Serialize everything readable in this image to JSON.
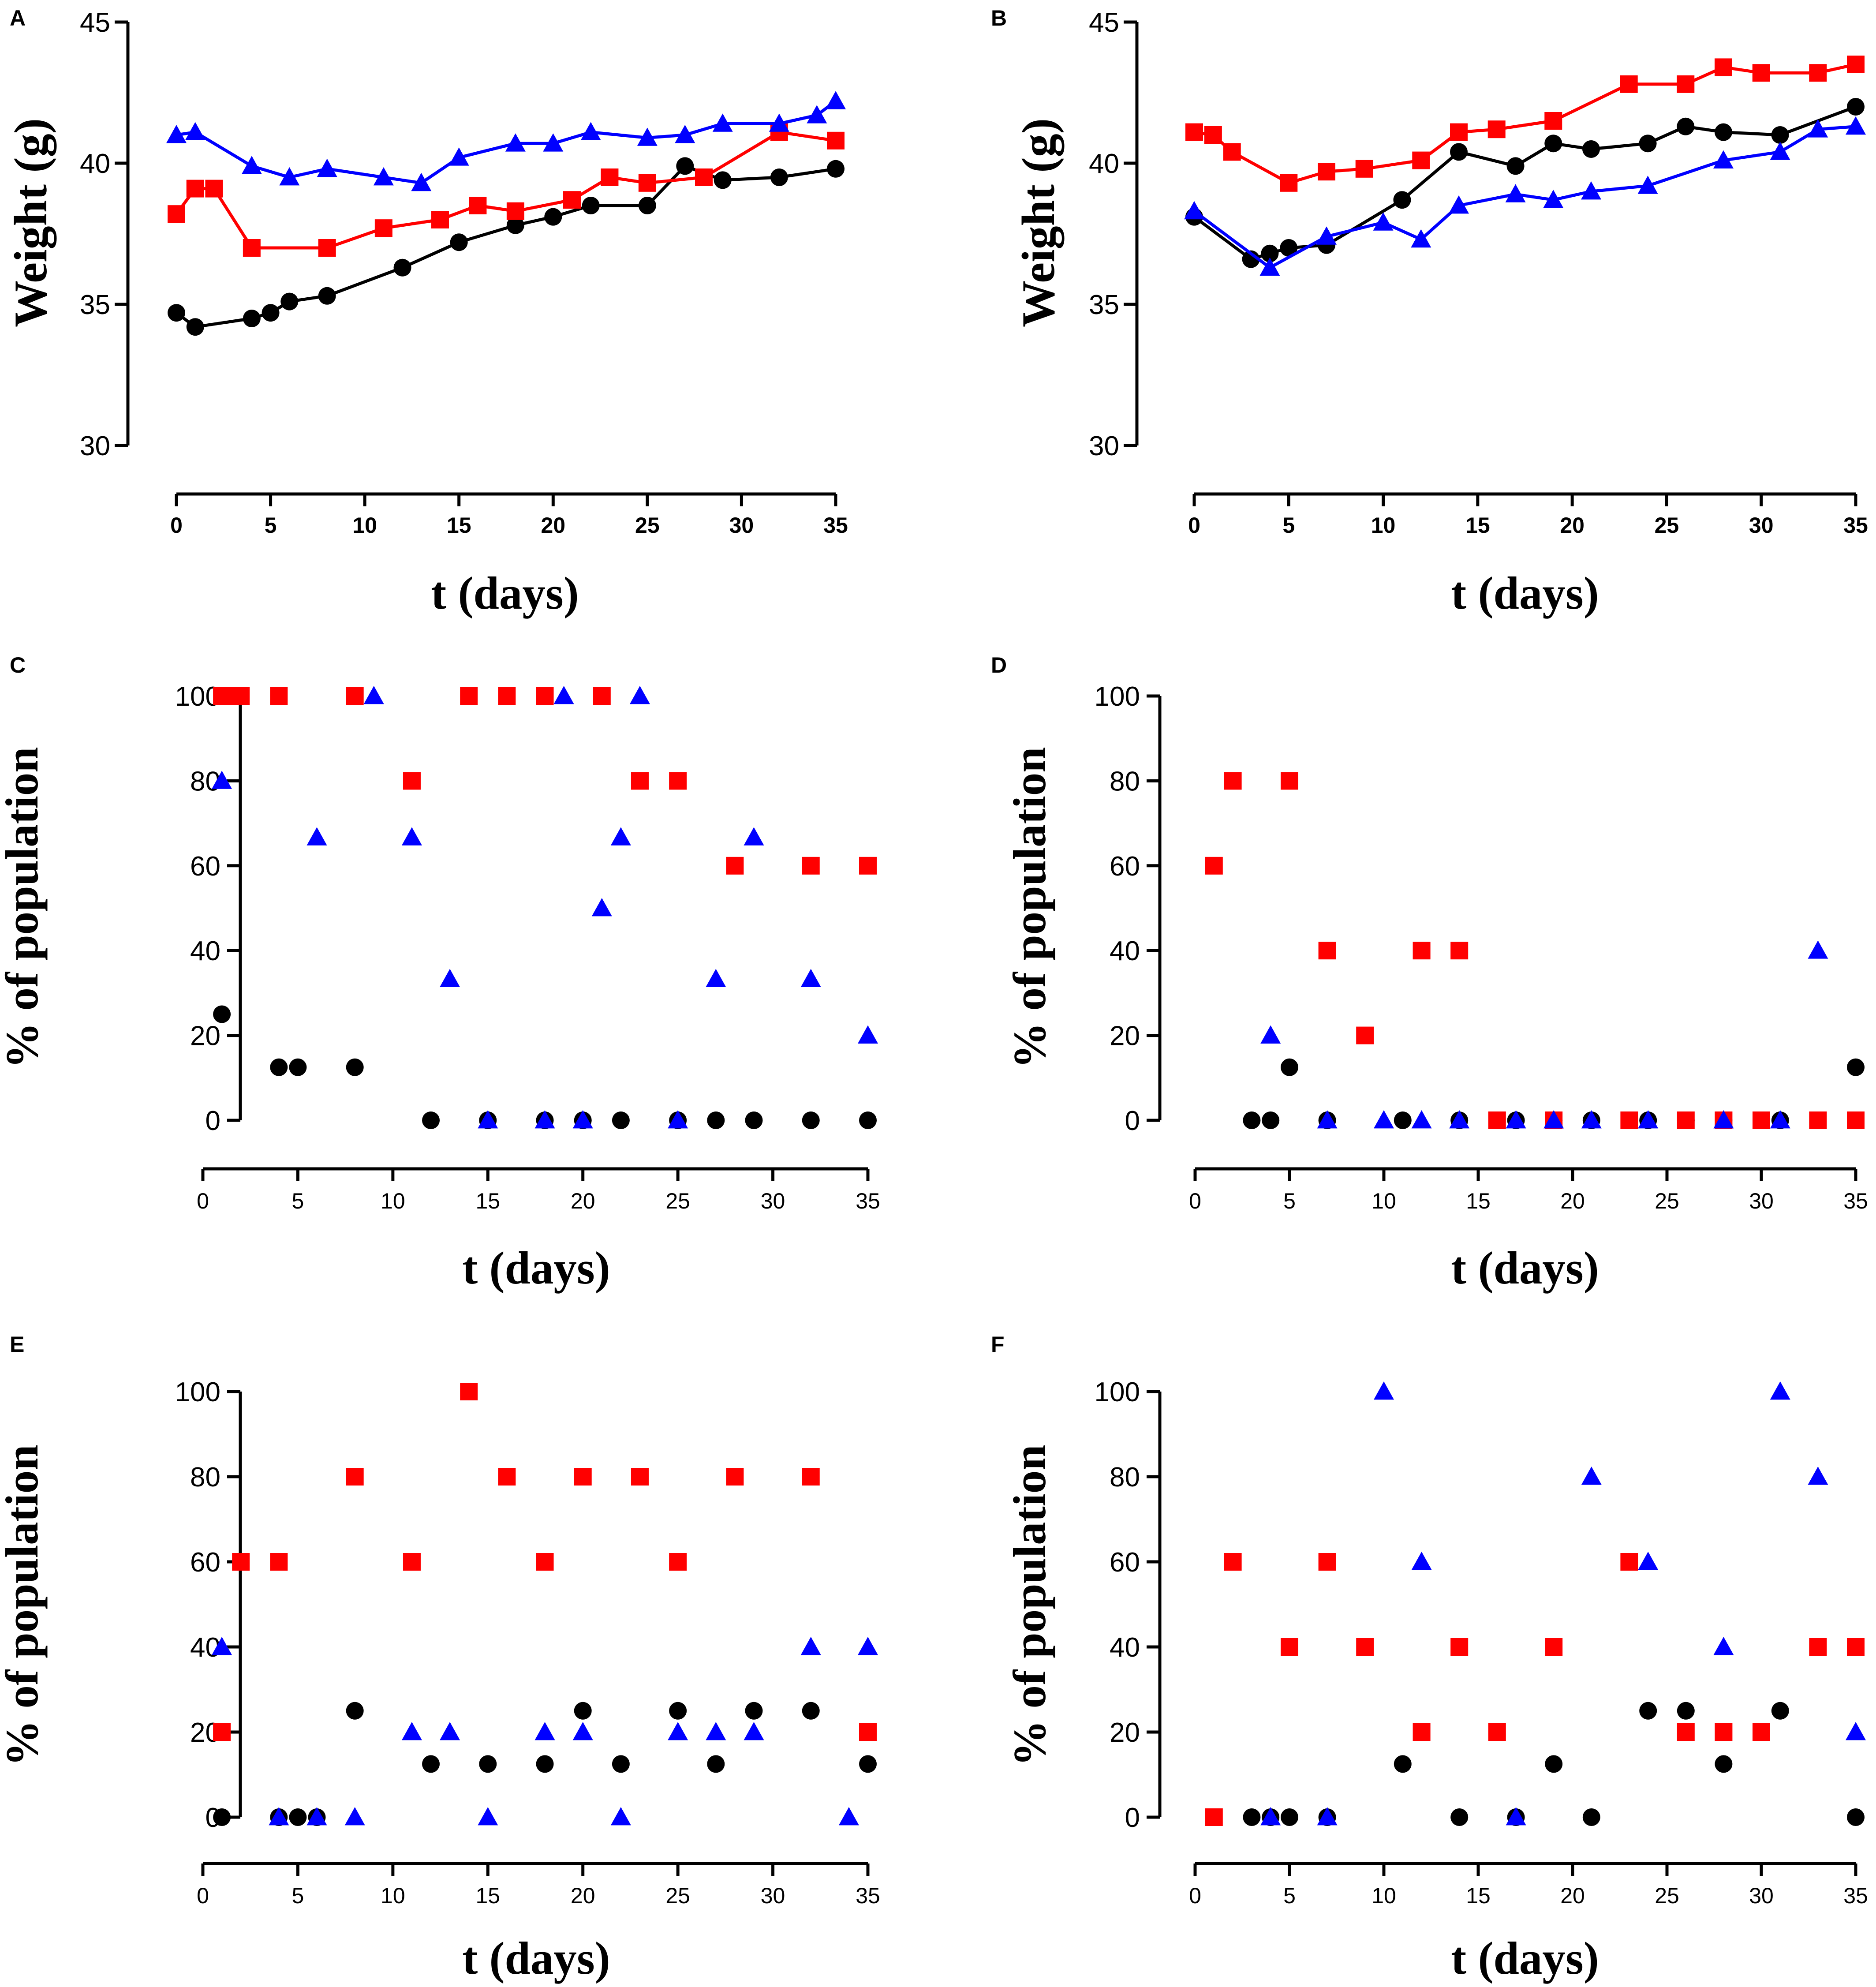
{
  "colors": {
    "black": "#000000",
    "red": "#ff0000",
    "blue": "#0000ff"
  },
  "chart_data": [
    {
      "panel": "A",
      "type": "line",
      "title": "",
      "xlabel": "t (days)",
      "ylabel": "Weight (g)",
      "xlim": [
        0,
        35
      ],
      "ylim": [
        30,
        45
      ],
      "xticks": [
        0,
        5,
        10,
        15,
        20,
        25,
        30,
        35
      ],
      "yticks": [
        30,
        35,
        40,
        45
      ],
      "series": [
        {
          "name": "black",
          "marker": "circle",
          "color": "#000000",
          "x": [
            0,
            1,
            4,
            5,
            6,
            8,
            12,
            15,
            18,
            20,
            22,
            25,
            27,
            29,
            32,
            35
          ],
          "y": [
            34.7,
            34.2,
            34.5,
            34.7,
            35.1,
            35.3,
            36.3,
            37.2,
            37.8,
            38.1,
            38.5,
            38.5,
            39.9,
            39.4,
            39.5,
            39.8
          ]
        },
        {
          "name": "red",
          "marker": "square",
          "color": "#ff0000",
          "x": [
            0,
            1,
            2,
            4,
            8,
            11,
            14,
            16,
            18,
            21,
            23,
            25,
            28,
            32,
            35
          ],
          "y": [
            38.2,
            39.1,
            39.1,
            37.0,
            37.0,
            37.7,
            38.0,
            38.5,
            38.3,
            38.7,
            39.5,
            39.3,
            39.5,
            41.1,
            40.8
          ]
        },
        {
          "name": "blue",
          "marker": "triangle",
          "color": "#0000ff",
          "x": [
            0,
            1,
            4,
            6,
            8,
            11,
            13,
            15,
            18,
            20,
            22,
            25,
            27,
            29,
            32,
            34,
            35
          ],
          "y": [
            41.0,
            41.1,
            39.9,
            39.5,
            39.8,
            39.5,
            39.3,
            40.2,
            40.7,
            40.7,
            41.1,
            40.9,
            41.0,
            41.4,
            41.4,
            41.7,
            42.2
          ]
        }
      ]
    },
    {
      "panel": "B",
      "type": "line",
      "title": "",
      "xlabel": "t (days)",
      "ylabel": "Weight (g)",
      "xlim": [
        0,
        35
      ],
      "ylim": [
        30,
        45
      ],
      "xticks": [
        0,
        5,
        10,
        15,
        20,
        25,
        30,
        35
      ],
      "yticks": [
        30,
        35,
        40,
        45
      ],
      "series": [
        {
          "name": "black",
          "marker": "circle",
          "color": "#000000",
          "x": [
            0,
            3,
            4,
            5,
            7,
            11,
            14,
            17,
            19,
            21,
            24,
            26,
            28,
            31,
            35
          ],
          "y": [
            38.1,
            36.6,
            36.8,
            37.0,
            37.1,
            38.7,
            40.4,
            39.9,
            40.7,
            40.5,
            40.7,
            41.3,
            41.1,
            41.0,
            42.0
          ]
        },
        {
          "name": "red",
          "marker": "square",
          "color": "#ff0000",
          "x": [
            0,
            1,
            2,
            5,
            7,
            9,
            12,
            14,
            16,
            19,
            23,
            26,
            28,
            30,
            33,
            35
          ],
          "y": [
            41.1,
            41.0,
            40.4,
            39.3,
            39.7,
            39.8,
            40.1,
            41.1,
            41.2,
            41.5,
            42.8,
            42.8,
            43.4,
            43.2,
            43.2,
            43.5
          ]
        },
        {
          "name": "blue",
          "marker": "triangle",
          "color": "#0000ff",
          "x": [
            0,
            4,
            7,
            10,
            12,
            14,
            17,
            19,
            21,
            24,
            28,
            31,
            33,
            35
          ],
          "y": [
            38.3,
            36.3,
            37.4,
            37.9,
            37.3,
            38.5,
            38.9,
            38.7,
            39.0,
            39.2,
            40.1,
            40.4,
            41.2,
            41.3
          ]
        }
      ]
    },
    {
      "panel": "C",
      "type": "scatter",
      "title": "",
      "xlabel": "t (days)",
      "ylabel": "% of population",
      "xlim": [
        0,
        35
      ],
      "ylim": [
        0,
        100
      ],
      "xticks": [
        0,
        5,
        10,
        15,
        20,
        25,
        30,
        35
      ],
      "yticks": [
        0,
        20,
        40,
        60,
        80,
        100
      ],
      "series": [
        {
          "name": "black",
          "marker": "circle",
          "color": "#000000",
          "x": [
            1,
            4,
            5,
            8,
            12,
            15,
            18,
            20,
            22,
            25,
            27,
            29,
            32,
            35
          ],
          "y": [
            25,
            12.5,
            12.5,
            12.5,
            0,
            0,
            0,
            0,
            0,
            0,
            0,
            0,
            0,
            0
          ]
        },
        {
          "name": "red",
          "marker": "square",
          "color": "#ff0000",
          "x": [
            1,
            1.5,
            2,
            4,
            8,
            11,
            14,
            16,
            18,
            21,
            23,
            25,
            28,
            32,
            35
          ],
          "y": [
            100,
            100,
            100,
            100,
            100,
            80,
            100,
            100,
            100,
            100,
            80,
            80,
            60,
            60,
            60
          ]
        },
        {
          "name": "blue",
          "marker": "triangle",
          "color": "#0000ff",
          "x": [
            1,
            6,
            9,
            11,
            13,
            15,
            18,
            19,
            20,
            21,
            22,
            23,
            25,
            27,
            29,
            32,
            35
          ],
          "y": [
            80,
            66.7,
            100,
            66.7,
            33.3,
            0,
            0,
            100,
            0,
            50,
            66.7,
            100,
            0,
            33.3,
            66.7,
            33.3,
            20
          ]
        }
      ]
    },
    {
      "panel": "D",
      "type": "scatter",
      "title": "",
      "xlabel": "t (days)",
      "ylabel": "% of population",
      "xlim": [
        0,
        35
      ],
      "ylim": [
        0,
        100
      ],
      "xticks": [
        0,
        5,
        10,
        15,
        20,
        25,
        30,
        35
      ],
      "yticks": [
        0,
        20,
        40,
        60,
        80,
        100
      ],
      "series": [
        {
          "name": "black",
          "marker": "circle",
          "color": "#000000",
          "x": [
            3,
            4,
            5,
            7,
            11,
            14,
            17,
            19,
            21,
            24,
            26,
            28,
            31,
            35
          ],
          "y": [
            0,
            0,
            12.5,
            0,
            0,
            0,
            0,
            0,
            0,
            0,
            0,
            0,
            0,
            12.5
          ]
        },
        {
          "name": "red",
          "marker": "square",
          "color": "#ff0000",
          "x": [
            1,
            2,
            5,
            7,
            9,
            12,
            14,
            16,
            19,
            23,
            26,
            28,
            30,
            33,
            35
          ],
          "y": [
            60,
            80,
            80,
            40,
            20,
            40,
            40,
            0,
            0,
            0,
            0,
            0,
            0,
            0,
            0
          ]
        },
        {
          "name": "blue",
          "marker": "triangle",
          "color": "#0000ff",
          "x": [
            4,
            7,
            10,
            12,
            14,
            17,
            19,
            21,
            24,
            28,
            31,
            33
          ],
          "y": [
            20,
            0,
            0,
            0,
            0,
            0,
            0,
            0,
            0,
            0,
            0,
            40
          ]
        }
      ]
    },
    {
      "panel": "E",
      "type": "scatter",
      "title": "",
      "xlabel": "t (days)",
      "ylabel": "% of population",
      "xlim": [
        0,
        35
      ],
      "ylim": [
        0,
        100
      ],
      "xticks": [
        0,
        5,
        10,
        15,
        20,
        25,
        30,
        35
      ],
      "yticks": [
        0,
        20,
        40,
        60,
        80,
        100
      ],
      "series": [
        {
          "name": "black",
          "marker": "circle",
          "color": "#000000",
          "x": [
            1,
            4,
            5,
            6,
            8,
            12,
            15,
            18,
            20,
            22,
            25,
            27,
            29,
            32,
            35
          ],
          "y": [
            0,
            0,
            0,
            0,
            25,
            12.5,
            12.5,
            12.5,
            25,
            12.5,
            25,
            12.5,
            25,
            25,
            12.5
          ]
        },
        {
          "name": "red",
          "marker": "square",
          "color": "#ff0000",
          "x": [
            1,
            2,
            4,
            8,
            11,
            14,
            16,
            18,
            20,
            23,
            25,
            28,
            32,
            35
          ],
          "y": [
            20,
            60,
            60,
            80,
            60,
            100,
            80,
            60,
            80,
            80,
            60,
            80,
            80,
            20
          ]
        },
        {
          "name": "blue",
          "marker": "triangle",
          "color": "#0000ff",
          "x": [
            1,
            4,
            6,
            8,
            11,
            13,
            15,
            18,
            20,
            22,
            25,
            27,
            29,
            32,
            34,
            35
          ],
          "y": [
            40,
            0,
            0,
            0,
            20,
            20,
            0,
            20,
            20,
            0,
            20,
            20,
            20,
            40,
            0,
            40
          ]
        }
      ]
    },
    {
      "panel": "F",
      "type": "scatter",
      "title": "",
      "xlabel": "t (days)",
      "ylabel": "% of population",
      "xlim": [
        0,
        35
      ],
      "ylim": [
        0,
        100
      ],
      "xticks": [
        0,
        5,
        10,
        15,
        20,
        25,
        30,
        35
      ],
      "yticks": [
        0,
        20,
        40,
        60,
        80,
        100
      ],
      "series": [
        {
          "name": "black",
          "marker": "circle",
          "color": "#000000",
          "x": [
            3,
            4,
            5,
            7,
            11,
            14,
            17,
            19,
            21,
            24,
            26,
            28,
            31,
            35
          ],
          "y": [
            0,
            0,
            0,
            0,
            12.5,
            0,
            0,
            12.5,
            0,
            25,
            25,
            12.5,
            25,
            0
          ]
        },
        {
          "name": "red",
          "marker": "square",
          "color": "#ff0000",
          "x": [
            1,
            2,
            5,
            7,
            9,
            12,
            14,
            16,
            19,
            23,
            26,
            28,
            30,
            33,
            35
          ],
          "y": [
            0,
            60,
            40,
            60,
            40,
            20,
            40,
            20,
            40,
            60,
            20,
            20,
            20,
            40,
            40
          ]
        },
        {
          "name": "blue",
          "marker": "triangle",
          "color": "#0000ff",
          "x": [
            4,
            7,
            10,
            12,
            17,
            21,
            24,
            28,
            31,
            33,
            35
          ],
          "y": [
            0,
            0,
            100,
            60,
            0,
            80,
            60,
            40,
            100,
            80,
            20
          ]
        }
      ]
    }
  ]
}
